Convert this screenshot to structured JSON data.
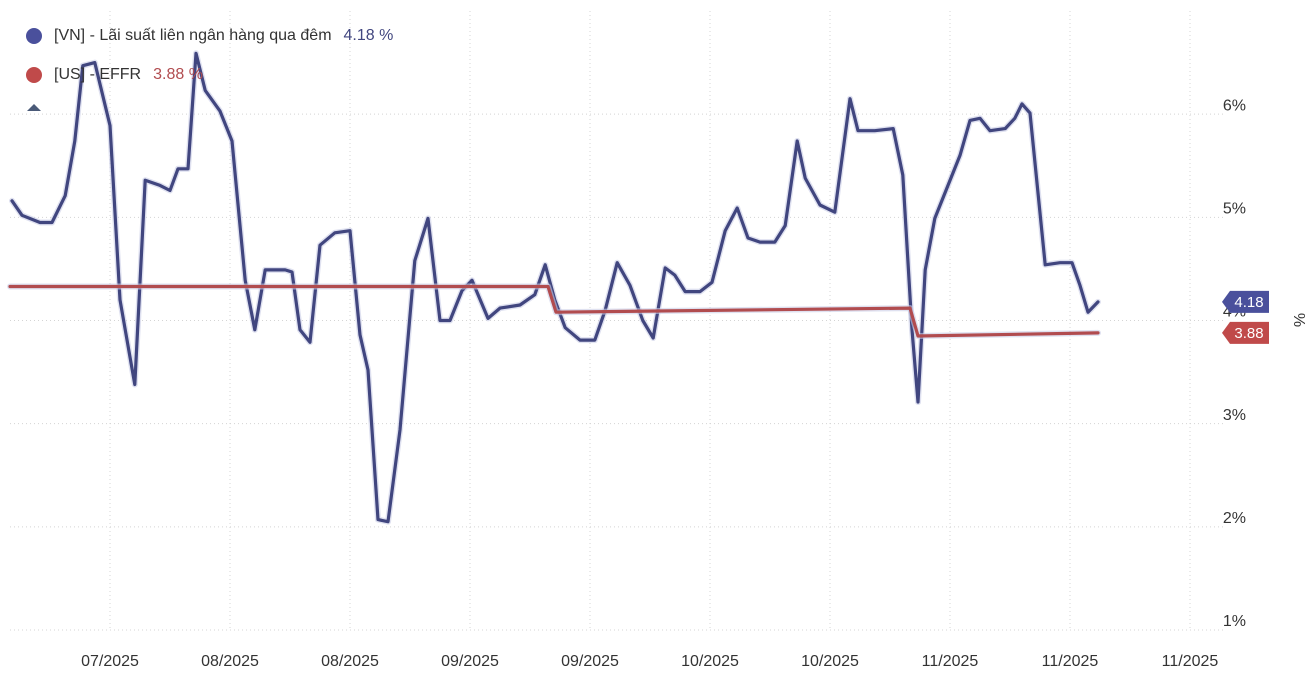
{
  "chart_data": {
    "type": "line",
    "y_label": "%",
    "ylim": [
      1,
      7
    ],
    "yticks": [
      {
        "value": 1,
        "label": "1%"
      },
      {
        "value": 2,
        "label": "2%"
      },
      {
        "value": 3,
        "label": "3%"
      },
      {
        "value": 4,
        "label": "4%"
      },
      {
        "value": 5,
        "label": "5%"
      },
      {
        "value": 6,
        "label": "6%"
      }
    ],
    "xlim": [
      0,
      152
    ],
    "xticks": [
      {
        "value": 12.5,
        "label": "07/2025"
      },
      {
        "value": 27.5,
        "label": "08/2025"
      },
      {
        "value": 42.5,
        "label": "08/2025"
      },
      {
        "value": 57.5,
        "label": "09/2025"
      },
      {
        "value": 72.5,
        "label": "09/2025"
      },
      {
        "value": 87.5,
        "label": "10/2025"
      },
      {
        "value": 102.5,
        "label": "10/2025"
      },
      {
        "value": 117.5,
        "label": "11/2025"
      },
      {
        "value": 132.5,
        "label": "11/2025"
      },
      {
        "value": 147.5,
        "label": "11/2025"
      }
    ],
    "grid": true,
    "series": [
      {
        "name": "[VN] - Lãi suất liên ngân hàng qua đêm",
        "legend_value": "4.18 %",
        "badge": "4.18",
        "color": "#41467f",
        "badge_color": "#4a509c",
        "x": [
          0.25,
          1.5,
          3.75,
          5.25,
          6.9,
          8.1,
          9.1,
          10.6,
          12.5,
          13.75,
          15.6,
          16.9,
          18.75,
          20,
          21,
          22.25,
          23.25,
          24.4,
          26.25,
          27.75,
          29.4,
          30.6,
          31.9,
          34.4,
          35.25,
          36.25,
          37.5,
          38.75,
          40.6,
          42.5,
          43.75,
          44.75,
          46,
          47.25,
          48.75,
          50.6,
          52.25,
          53.75,
          55,
          56.5,
          57.75,
          59.75,
          61.25,
          63.75,
          65.6,
          66.9,
          68.1,
          69.4,
          71.25,
          73.1,
          74.4,
          75.9,
          77.5,
          79.1,
          80.4,
          81.9,
          83.1,
          84.4,
          86.25,
          87.75,
          89.4,
          90.9,
          92.25,
          93.75,
          95.6,
          96.9,
          98.4,
          99.4,
          101.25,
          103.1,
          105,
          106,
          108.1,
          110.4,
          111.6,
          112.75,
          113.5,
          114.4,
          115.6,
          117.25,
          118.75,
          120,
          121.25,
          122.5,
          124.4,
          125.6,
          126.5,
          127.5,
          129.4,
          131.25,
          132.75,
          133.75,
          134.75,
          136
        ],
        "values": [
          5.16,
          5.02,
          4.95,
          4.95,
          5.21,
          5.74,
          6.47,
          6.5,
          5.89,
          4.2,
          3.38,
          5.36,
          5.31,
          5.26,
          5.47,
          5.47,
          6.59,
          6.23,
          6.03,
          5.74,
          4.39,
          3.91,
          4.49,
          4.49,
          4.47,
          3.91,
          3.79,
          4.73,
          4.85,
          4.87,
          3.86,
          3.52,
          2.07,
          2.05,
          2.94,
          4.58,
          4.99,
          4.0,
          4.0,
          4.29,
          4.39,
          4.02,
          4.12,
          4.15,
          4.25,
          4.54,
          4.2,
          3.93,
          3.81,
          3.81,
          4.1,
          4.56,
          4.34,
          4.0,
          3.83,
          4.51,
          4.44,
          4.28,
          4.28,
          4.37,
          4.87,
          5.09,
          4.8,
          4.76,
          4.76,
          4.92,
          5.74,
          5.38,
          5.12,
          5.05,
          6.15,
          5.84,
          5.84,
          5.86,
          5.41,
          3.91,
          3.21,
          4.49,
          4.99,
          5.31,
          5.6,
          5.94,
          5.96,
          5.84,
          5.86,
          5.96,
          6.1,
          6.01,
          4.54,
          4.56,
          4.56,
          4.34,
          4.08,
          4.18
        ]
      },
      {
        "name": "[US] - EFFR",
        "legend_value": "3.88 %",
        "badge": "3.88",
        "color": "#b14c4f",
        "badge_color": "#c04a4a",
        "x": [
          0,
          67.25,
          68.25,
          112.5,
          113.5,
          136
        ],
        "values": [
          4.33,
          4.33,
          4.08,
          4.12,
          3.85,
          3.88
        ]
      }
    ]
  }
}
